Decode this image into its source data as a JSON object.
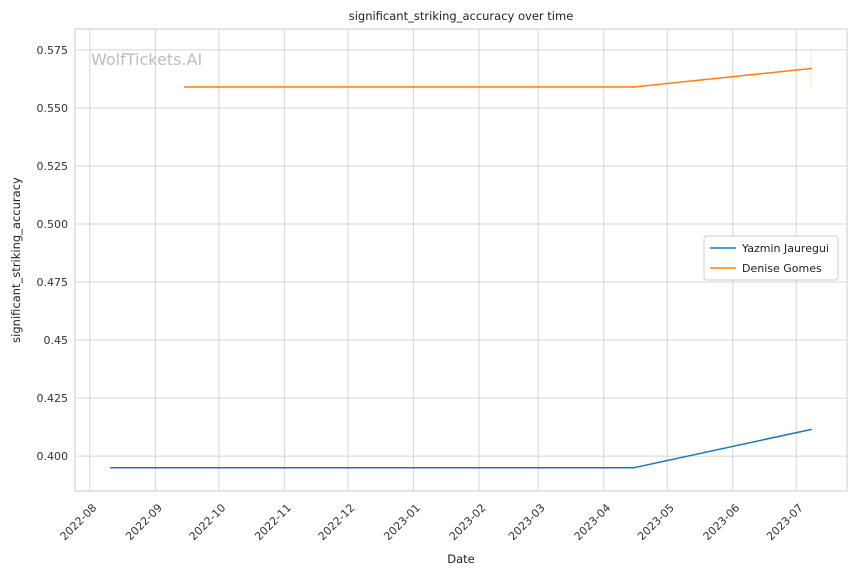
{
  "watermark": "WolfTickets.AI",
  "chart_data": {
    "type": "line",
    "title": "significant_striking_accuracy over time",
    "xlabel": "Date",
    "ylabel": "significant_striking_accuracy",
    "x_ticks": [
      "2022-08-01",
      "2022-09-01",
      "2022-10-01",
      "2022-11-01",
      "2022-12-01",
      "2023-01-01",
      "2023-02-01",
      "2023-03-01",
      "2023-04-01",
      "2023-05-01",
      "2023-06-01",
      "2023-07-01"
    ],
    "x_tick_labels": [
      "2022-08",
      "2022-09",
      "2022-10",
      "2022-11",
      "2022-12",
      "2023-01",
      "2023-02",
      "2023-03",
      "2023-04",
      "2023-05",
      "2023-06",
      "2023-07"
    ],
    "xlim": [
      "2022-07-25",
      "2023-07-25"
    ],
    "y_ticks": [
      0.4,
      0.425,
      0.45,
      0.475,
      0.5,
      0.525,
      0.55,
      0.575
    ],
    "y_tick_labels": [
      "0.400",
      "0.425",
      0.45,
      "0.475",
      "0.500",
      "0.525",
      "0.550",
      "0.575"
    ],
    "ylim": [
      0.385,
      0.584
    ],
    "grid": true,
    "legend_position": "center-right",
    "series": [
      {
        "name": "Yazmin Jauregui",
        "color": "#1f77b4",
        "points": [
          {
            "x": "2022-08-11",
            "y": 0.395
          },
          {
            "x": "2023-04-15",
            "y": 0.395
          },
          {
            "x": "2023-07-08",
            "y": 0.4115
          }
        ]
      },
      {
        "name": "Denise Gomes",
        "color": "#ff7f0e",
        "points": [
          {
            "x": "2022-09-15",
            "y": 0.559
          },
          {
            "x": "2023-04-15",
            "y": 0.559
          },
          {
            "x": "2023-07-08",
            "y": 0.567
          }
        ]
      }
    ]
  }
}
